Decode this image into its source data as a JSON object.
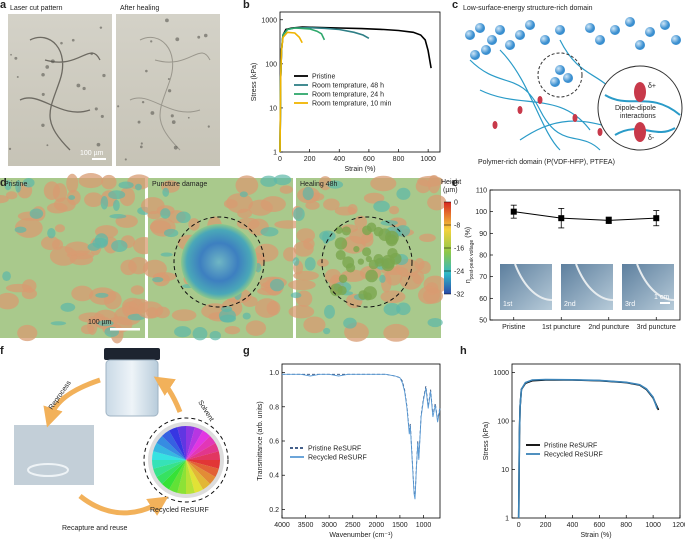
{
  "panel_labels": [
    "a",
    "b",
    "c",
    "d",
    "e",
    "f",
    "g",
    "h"
  ],
  "panel_a": {
    "images": [
      "Laser cut pattern",
      "After healing"
    ],
    "scale_bar": "100 µm"
  },
  "panel_c": {
    "top_label": "Low-surface-energy structure-rich domain",
    "inset_label": [
      "Dipole-dipole",
      "interactions"
    ],
    "bottom_label": "Polymer-rich domain (P(VDF-HFP), PTFEA)",
    "charges": [
      "δ+",
      "δ-"
    ]
  },
  "panel_d": {
    "images": [
      "Pristine",
      "Puncture damage",
      "Healing 48h"
    ],
    "scale_bar": "100 µm",
    "colorbar_title": [
      "Height",
      "(µm)"
    ],
    "colorbar_ticks": [
      0,
      -8,
      -16,
      -24,
      -32
    ]
  },
  "panel_e_insets": {
    "labels": [
      "1st",
      "2nd",
      "3rd"
    ],
    "scale_bar": "1 cm"
  },
  "panel_f": {
    "steps": [
      "Solvent",
      "Reprocess",
      "Recapture and reuse"
    ],
    "product": "Recycled ReSURF"
  },
  "chart_data": [
    {
      "type": "line",
      "xlabel": "Strain (%)",
      "ylabel": "Stress (kPa)",
      "log": true,
      "xlim": [
        0,
        1080
      ],
      "xticks": [
        0,
        200,
        400,
        600,
        800,
        1000
      ],
      "ylim": [
        1,
        1500
      ],
      "yticks": [
        1,
        10,
        100,
        1000
      ],
      "legend": "center right",
      "series": [
        {
          "name": "Pristine",
          "color": "#000000",
          "x": [
            0,
            5,
            10,
            20,
            40,
            80,
            150,
            250,
            400,
            550,
            700,
            800,
            900,
            950,
            980,
            1000,
            1020
          ],
          "values": [
            1,
            50,
            200,
            450,
            600,
            650,
            680,
            670,
            650,
            630,
            600,
            570,
            520,
            450,
            350,
            200,
            80
          ]
        },
        {
          "name": "Room temprature, 48 h",
          "color": "#2f7f86",
          "x": [
            0,
            5,
            10,
            20,
            50,
            100,
            200,
            300,
            400,
            500,
            560,
            600
          ],
          "values": [
            1,
            50,
            200,
            450,
            600,
            650,
            660,
            640,
            600,
            520,
            450,
            380
          ]
        },
        {
          "name": "Room temprature, 24 h",
          "color": "#2fa86c",
          "x": [
            0,
            5,
            10,
            20,
            50,
            100,
            200,
            250,
            280,
            300
          ],
          "values": [
            1,
            50,
            200,
            450,
            600,
            650,
            620,
            550,
            480,
            350
          ]
        },
        {
          "name": "Room temprature, 10 min",
          "color": "#f0b400",
          "x": [
            0,
            5,
            10,
            20,
            50,
            100,
            130,
            150
          ],
          "values": [
            1,
            50,
            200,
            400,
            520,
            500,
            400,
            300
          ]
        }
      ]
    },
    {
      "type": "errorline",
      "ylabel": [
        "η",
        "post-peak voltage",
        "(%)"
      ],
      "categories": [
        "Pristine",
        "1st puncture",
        "2nd puncture",
        "3rd puncture"
      ],
      "values": [
        100,
        97,
        96,
        97
      ],
      "errors": [
        3,
        4.5,
        1.5,
        3.5
      ],
      "color": "#000000",
      "ylim": [
        50,
        110
      ],
      "yticks": [
        50,
        60,
        70,
        80,
        90,
        100,
        110
      ]
    },
    {
      "type": "line",
      "xlabel": "Wavenumber (cm⁻¹)",
      "ylabel": "Transmittance (arb. units)",
      "xlim": [
        4000,
        650
      ],
      "xticks": [
        4000,
        3500,
        3000,
        2500,
        2000,
        1500,
        1000
      ],
      "ylim": [
        0.15,
        1.05
      ],
      "yticks": [
        0.2,
        0.4,
        0.6,
        0.8,
        {
          "value": 1,
          "label": "1.0"
        }
      ],
      "legend": "lower left",
      "series": [
        {
          "name": "Pristine ReSURF",
          "color": "#2b4a7a",
          "dashed": true,
          "x": [
            4000,
            3800,
            3600,
            3400,
            3200,
            3000,
            2800,
            2600,
            2400,
            2200,
            2000,
            1800,
            1600,
            1500,
            1450,
            1400,
            1350,
            1300,
            1280,
            1250,
            1220,
            1200,
            1180,
            1150,
            1120,
            1100,
            1050,
            1000,
            950,
            900,
            850,
            800,
            750,
            700,
            650
          ],
          "values": [
            0.99,
            0.99,
            0.99,
            0.99,
            0.99,
            0.99,
            0.99,
            0.99,
            0.99,
            0.99,
            0.99,
            0.99,
            0.98,
            0.97,
            0.95,
            0.9,
            0.8,
            0.65,
            0.7,
            0.55,
            0.4,
            0.3,
            0.27,
            0.45,
            0.6,
            0.5,
            0.75,
            0.85,
            0.92,
            0.8,
            0.9,
            0.75,
            0.82,
            0.72,
            0.8
          ]
        },
        {
          "name": "Recycled ReSURF",
          "color": "#5b9bd5",
          "x": [
            4000,
            3800,
            3600,
            3400,
            3200,
            3000,
            2800,
            2600,
            2400,
            2200,
            2000,
            1800,
            1600,
            1500,
            1450,
            1400,
            1350,
            1300,
            1280,
            1250,
            1220,
            1200,
            1180,
            1150,
            1120,
            1100,
            1050,
            1000,
            950,
            900,
            850,
            800,
            750,
            700,
            650
          ],
          "values": [
            0.99,
            0.99,
            0.99,
            0.98,
            0.99,
            0.99,
            0.98,
            0.99,
            0.99,
            0.99,
            0.99,
            0.99,
            0.98,
            0.97,
            0.94,
            0.89,
            0.79,
            0.64,
            0.69,
            0.54,
            0.39,
            0.29,
            0.26,
            0.44,
            0.59,
            0.49,
            0.74,
            0.84,
            0.91,
            0.79,
            0.89,
            0.74,
            0.81,
            0.71,
            0.79
          ]
        }
      ]
    },
    {
      "type": "line",
      "xlabel": "Strain (%)",
      "ylabel": "Stress (kPa)",
      "log": true,
      "xlim": [
        -50,
        1200
      ],
      "xticks": [
        0,
        200,
        400,
        600,
        800,
        1000,
        1200
      ],
      "ylim": [
        1,
        1500
      ],
      "yticks": [
        1,
        10,
        100,
        1000
      ],
      "legend": "center right",
      "series": [
        {
          "name": "Pristine ReSURF",
          "color": "#000000",
          "x": [
            0,
            5,
            10,
            20,
            50,
            100,
            200,
            400,
            600,
            800,
            900,
            950,
            1000,
            1040
          ],
          "values": [
            1,
            50,
            200,
            450,
            600,
            680,
            700,
            700,
            680,
            620,
            550,
            450,
            300,
            170
          ]
        },
        {
          "name": "Recycled ReSURF",
          "color": "#3c84b8",
          "x": [
            0,
            5,
            10,
            20,
            50,
            100,
            200,
            400,
            600,
            800,
            900,
            950,
            1000,
            1030
          ],
          "values": [
            1,
            50,
            200,
            450,
            620,
            700,
            720,
            710,
            690,
            630,
            560,
            460,
            310,
            180
          ]
        }
      ]
    }
  ]
}
